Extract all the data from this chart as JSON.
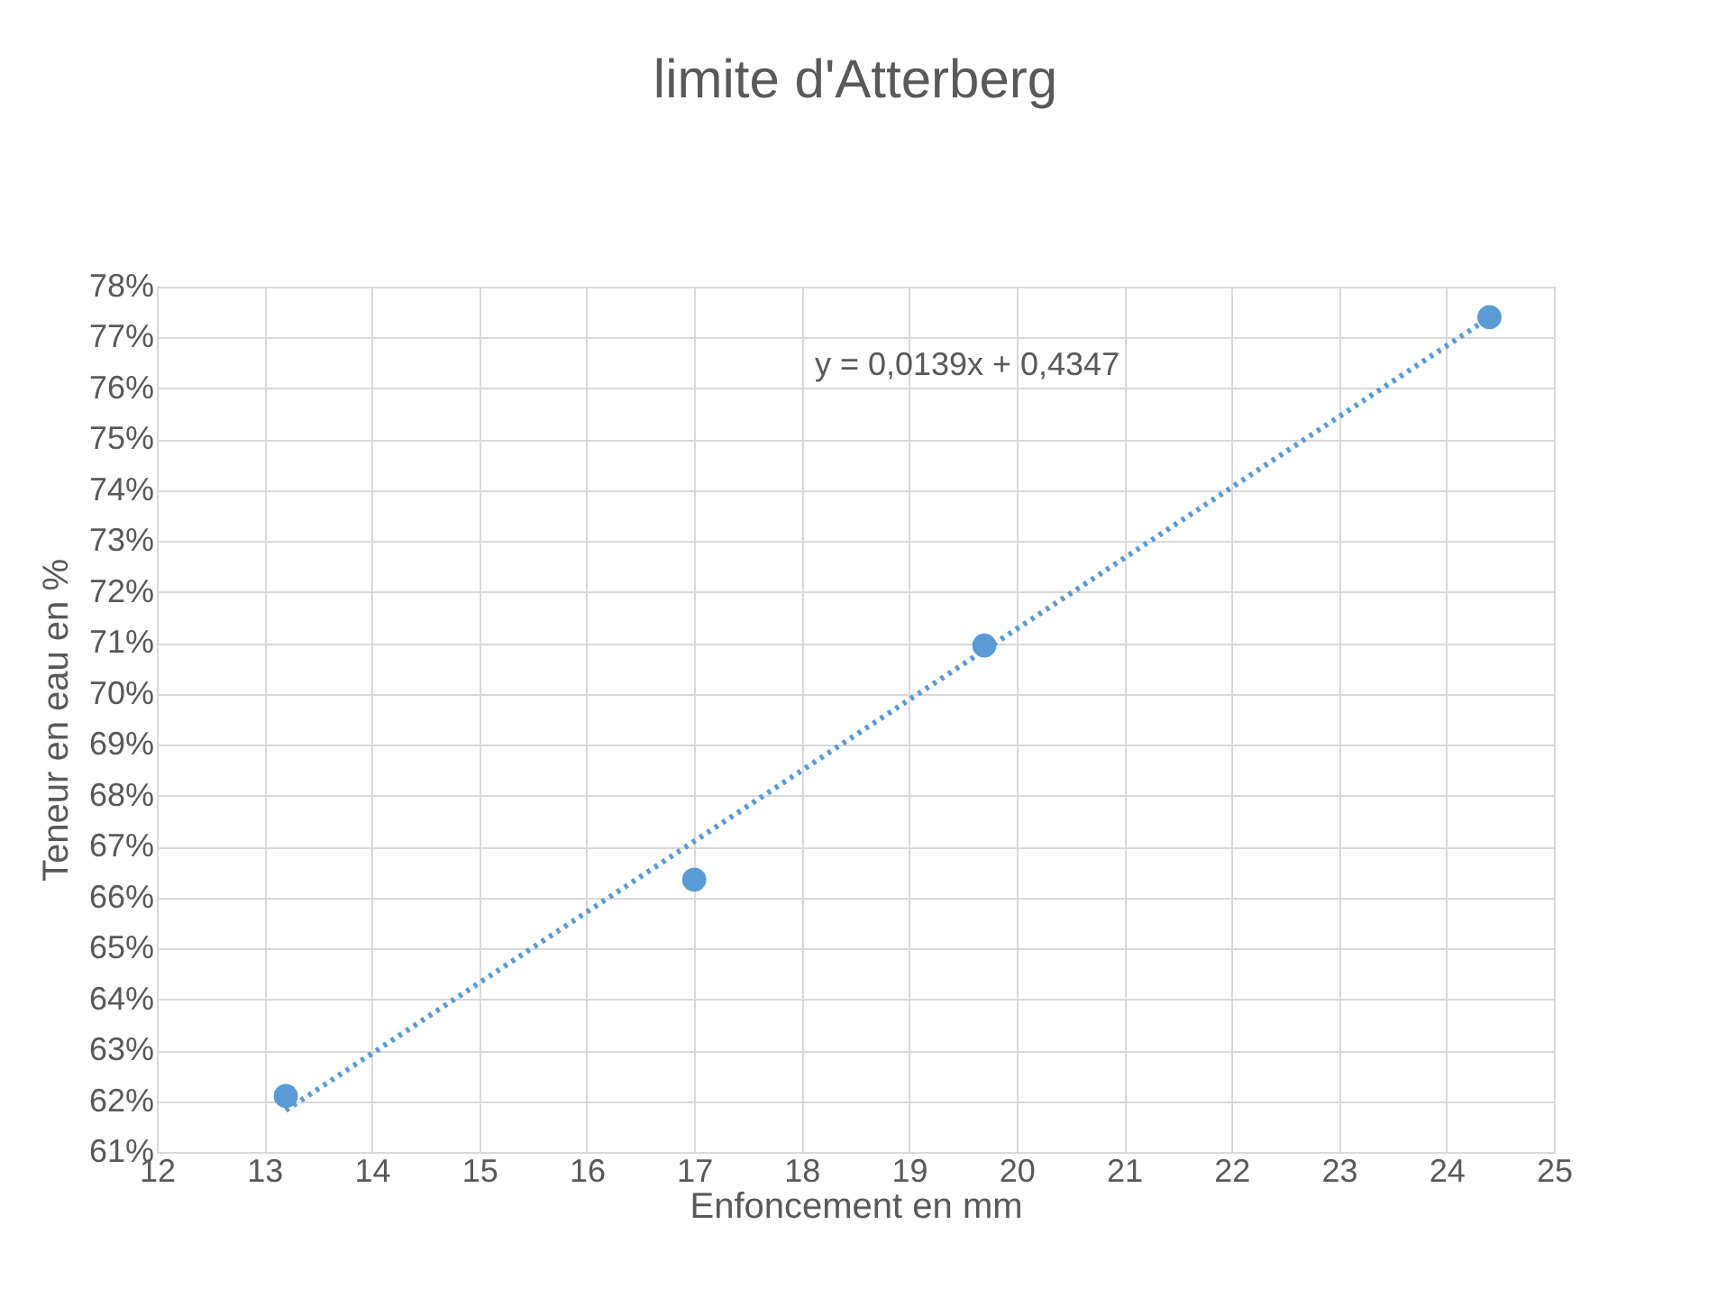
{
  "chart_data": {
    "type": "scatter",
    "title": "limite d'Atterberg",
    "xlabel": "Enfoncement en mm",
    "ylabel": "Teneur en eau en %",
    "series": [
      {
        "color": "#5b9bd5",
        "marker": "circle",
        "x": [
          13.2,
          17.0,
          19.7,
          24.4
        ],
        "values": [
          62.1,
          66.35,
          70.95,
          77.4
        ]
      },
      {
        "type": "line",
        "color": "#5b9bd5",
        "marker": "none",
        "line_style": "dotted",
        "x": [
          13.2,
          24.4
        ],
        "values": [
          61.82,
          77.39
        ]
      }
    ],
    "annotations": [
      "y = 0,0139x + 0,4347"
    ],
    "xlim": [
      12,
      25
    ],
    "xticks": [
      12,
      13,
      14,
      15,
      16,
      17,
      18,
      19,
      20,
      21,
      22,
      23,
      24,
      25
    ],
    "ylim": [
      61,
      78
    ],
    "yticks": [
      {
        "value": 61,
        "label": "61%"
      },
      {
        "value": 62,
        "label": "62%"
      },
      {
        "value": 63,
        "label": "63%"
      },
      {
        "value": 64,
        "label": "64%"
      },
      {
        "value": 65,
        "label": "65%"
      },
      {
        "value": 66,
        "label": "66%"
      },
      {
        "value": 67,
        "label": "67%"
      },
      {
        "value": 68,
        "label": "68%"
      },
      {
        "value": 69,
        "label": "69%"
      },
      {
        "value": 70,
        "label": "70%"
      },
      {
        "value": 71,
        "label": "71%"
      },
      {
        "value": 72,
        "label": "72%"
      },
      {
        "value": 73,
        "label": "73%"
      },
      {
        "value": 74,
        "label": "74%"
      },
      {
        "value": 75,
        "label": "75%"
      },
      {
        "value": 76,
        "label": "76%"
      },
      {
        "value": 77,
        "label": "77%"
      },
      {
        "value": 78,
        "label": "78%"
      }
    ],
    "grid": true
  }
}
